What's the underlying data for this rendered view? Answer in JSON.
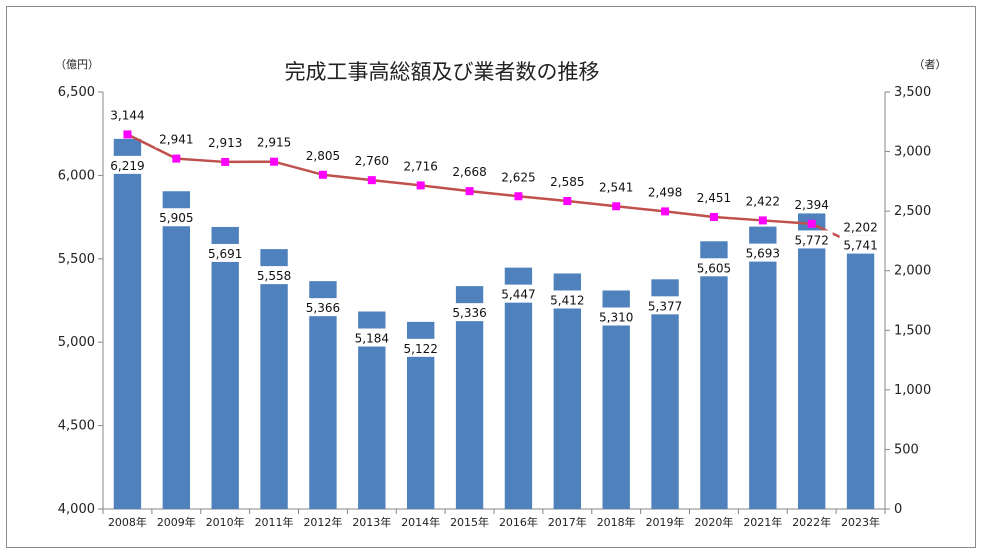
{
  "chart_data": {
    "type": "bar",
    "title": "完成工事高総額及び業者数の推移",
    "left_unit": "（億円）",
    "right_unit": "（者）",
    "categories": [
      "2008年",
      "2009年",
      "2010年",
      "2011年",
      "2012年",
      "2013年",
      "2014年",
      "2015年",
      "2016年",
      "2017年",
      "2018年",
      "2019年",
      "2020年",
      "2021年",
      "2022年",
      "2023年"
    ],
    "series": [
      {
        "type": "bar",
        "axis": "left",
        "color": "#4f81bd",
        "values": [
          6219,
          5905,
          5691,
          5558,
          5366,
          5184,
          5122,
          5336,
          5447,
          5412,
          5310,
          5377,
          5605,
          5693,
          5772,
          5741
        ],
        "labels": [
          "6,219",
          "5,905",
          "5,691",
          "5,558",
          "5,366",
          "5,184",
          "5,122",
          "5,336",
          "5,447",
          "5,412",
          "5,310",
          "5,377",
          "5,605",
          "5,693",
          "5,772",
          "5,741"
        ]
      },
      {
        "type": "line",
        "axis": "right",
        "line_color": "#c0504d",
        "marker_color": "#ff00ff",
        "values": [
          3144,
          2941,
          2913,
          2915,
          2805,
          2760,
          2716,
          2668,
          2625,
          2585,
          2541,
          2498,
          2451,
          2422,
          2394,
          2202
        ],
        "labels": [
          "3,144",
          "2,941",
          "2,913",
          "2,915",
          "2,805",
          "2,760",
          "2,716",
          "2,668",
          "2,625",
          "2,585",
          "2,541",
          "2,498",
          "2,451",
          "2,422",
          "2,394",
          "2,202"
        ]
      }
    ],
    "y_left": {
      "min": 4000,
      "max": 6500,
      "step": 500,
      "tick_labels": [
        "4,000",
        "4,500",
        "5,000",
        "5,500",
        "6,000",
        "6,500"
      ]
    },
    "y_right": {
      "min": 0,
      "max": 3500,
      "step": 500,
      "tick_labels": [
        "0",
        "500",
        "1,000",
        "1,500",
        "2,000",
        "2,500",
        "3,000",
        "3,500"
      ]
    },
    "grid": false,
    "legend": "none"
  }
}
